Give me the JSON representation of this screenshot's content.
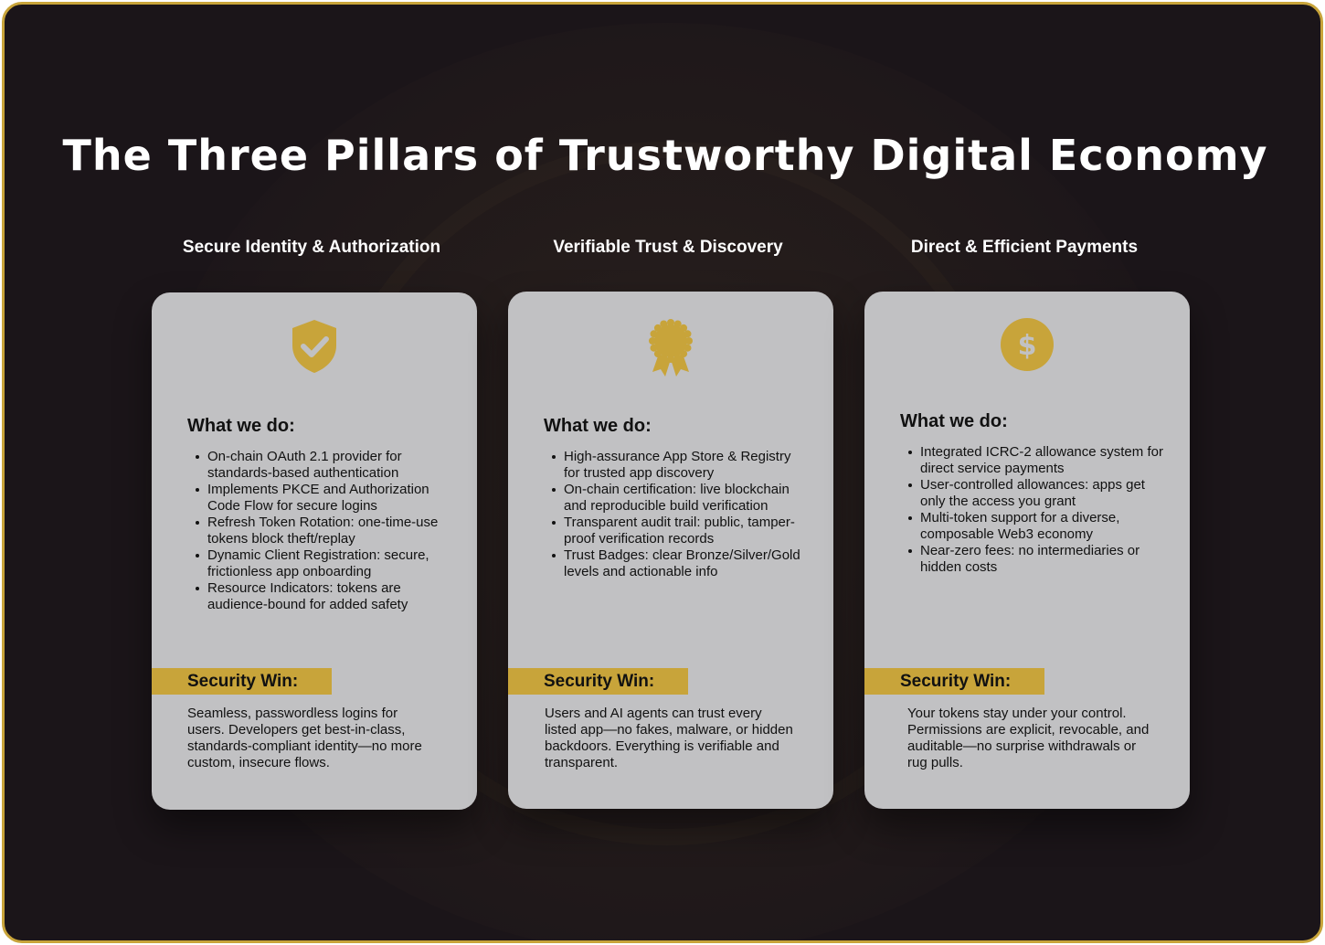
{
  "title": "The Three Pillars of Trustworthy Digital Economy",
  "accent_color": "#c8a43a",
  "pillars": [
    {
      "heading": "Secure Identity & Authorization",
      "icon": "shield-check-icon",
      "what_label": "What we do:",
      "items": [
        "On-chain OAuth 2.1 provider for standards-based authentication",
        "Implements PKCE and Authorization Code Flow for secure logins",
        "Refresh Token Rotation: one-time-use tokens block theft/replay",
        "Dynamic Client Registration: secure, frictionless app onboarding",
        "Resource Indicators: tokens are audience-bound for added safety"
      ],
      "win_label": "Security Win:",
      "win_text": "Seamless, passwordless logins for users. Developers get best-in-class, standards-compliant identity—no more custom, insecure flows."
    },
    {
      "heading": "Verifiable Trust & Discovery",
      "icon": "award-badge-icon",
      "what_label": "What we do:",
      "items": [
        "High-assurance App Store & Registry for trusted app discovery",
        "On-chain certification: live blockchain and reproducible build verification",
        "Transparent audit trail: public, tamper-proof verification records",
        "Trust Badges: clear Bronze/Silver/Gold levels and actionable info"
      ],
      "win_label": "Security Win:",
      "win_text": "Users and AI agents can trust every listed app—no fakes, malware, or hidden backdoors. Everything is verifiable and transparent."
    },
    {
      "heading": "Direct & Efficient Payments",
      "icon": "dollar-coin-icon",
      "what_label": "What we do:",
      "items": [
        "Integrated ICRC-2 allowance system for direct service payments",
        "User-controlled allowances: apps get only the access you grant",
        "Multi-token support for a diverse, composable Web3 economy",
        "Near-zero fees: no intermediaries or hidden costs"
      ],
      "win_label": "Security Win:",
      "win_text": "Your tokens stay under your control. Permissions are explicit, revocable, and auditable—no surprise withdrawals or rug pulls."
    }
  ]
}
